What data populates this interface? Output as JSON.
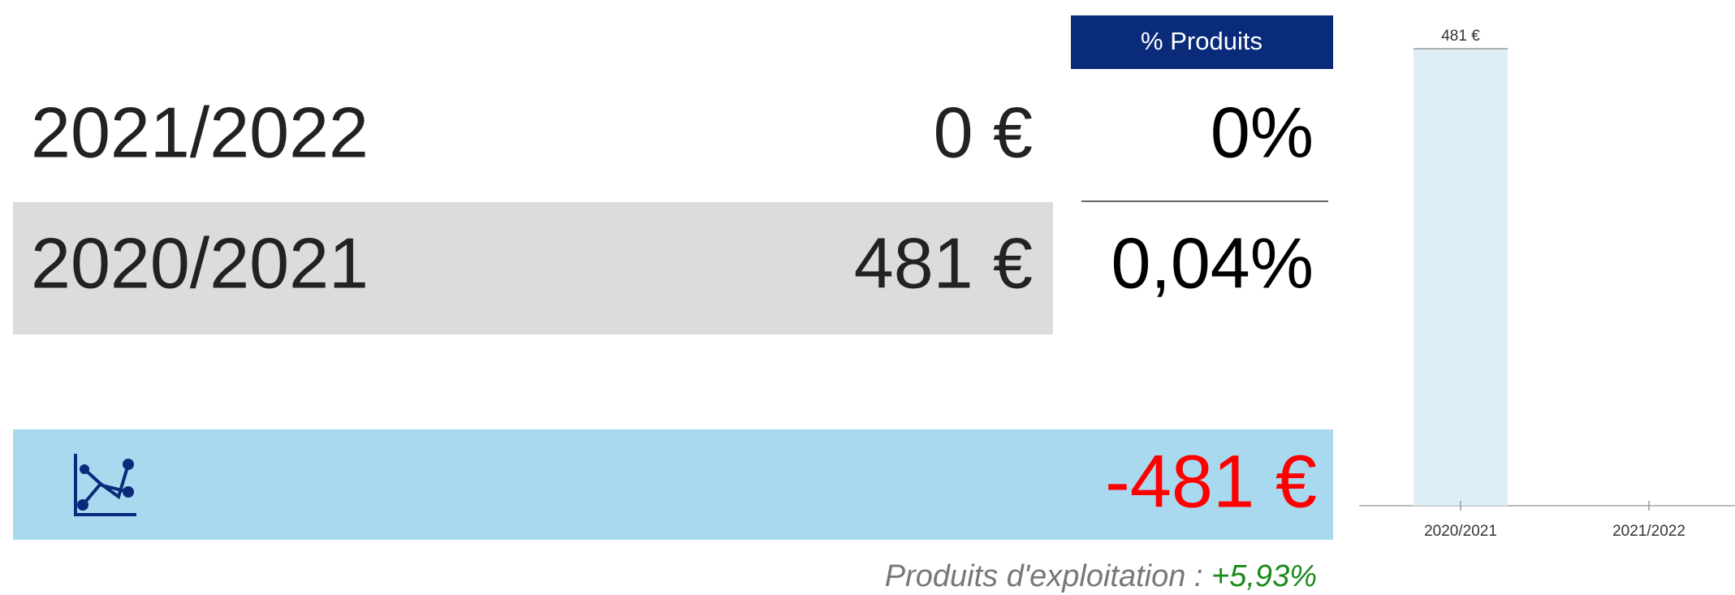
{
  "table": {
    "header": "% Produits",
    "rows": [
      {
        "year": "2021/2022",
        "amount": "0 €",
        "percent": "0%"
      },
      {
        "year": "2020/2021",
        "amount": "481 €",
        "percent": "0,04%"
      }
    ],
    "difference": "-481 €",
    "footer": {
      "label": "Produits d'exploitation : ",
      "change": "+5,93%"
    }
  },
  "chart_data": {
    "type": "bar",
    "categories": [
      "2020/2021",
      "2021/2022"
    ],
    "values": [
      481,
      0
    ],
    "value_labels": [
      "481 €",
      null
    ],
    "color": "#ddeef6",
    "ylim": [
      0,
      481
    ]
  }
}
